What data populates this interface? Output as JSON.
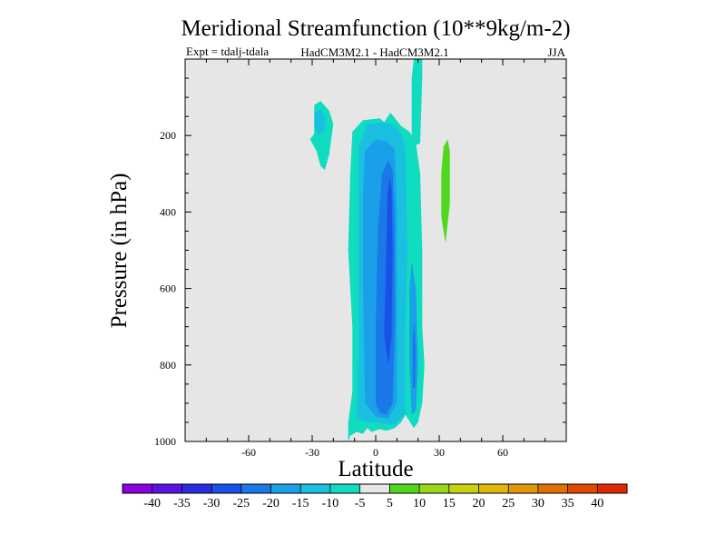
{
  "chart_data": {
    "type": "contour",
    "title": "Meridional Streamfunction (10**9kg/m-2)",
    "subtitle_left": "Expt = tdalj-tdala",
    "subtitle_center": "HadCM3M2.1 - HadCM3M2.1",
    "subtitle_right": "JJA",
    "xlabel": "Latitude",
    "ylabel": "Pressure (in hPa)",
    "xlim": [
      -90,
      90
    ],
    "ylim": [
      0,
      1000
    ],
    "y_inverted": true,
    "x_ticks": [
      -60,
      -30,
      0,
      30,
      60
    ],
    "x_tick_labels": [
      "-60",
      "-30",
      "0",
      "30",
      "60"
    ],
    "y_ticks": [
      200,
      400,
      600,
      800,
      1000
    ],
    "y_tick_labels": [
      "200",
      "400",
      "600",
      "800",
      "1000"
    ],
    "background": "#e6e6e6",
    "colorbar": {
      "levels": [
        "-40",
        "-35",
        "-30",
        "-25",
        "-20",
        "-15",
        "-10",
        "-5",
        "5",
        "10",
        "15",
        "20",
        "25",
        "30",
        "35",
        "40"
      ],
      "colors": [
        "#8a00e0",
        "#5a14e0",
        "#2a2ee0",
        "#1850e8",
        "#1a78e8",
        "#1aa0e8",
        "#1ac0e0",
        "#10dcc0",
        "#e6e6e6",
        "#50d820",
        "#98d818",
        "#c8d010",
        "#e0b808",
        "#e09808",
        "#e07000",
        "#e04a00",
        "#e02800"
      ]
    },
    "regions": [
      {
        "name": "main-cell-outer",
        "color": "#10dcc0",
        "points": [
          [
            -13,
            1000
          ],
          [
            -13,
            950
          ],
          [
            -11,
            870
          ],
          [
            -11,
            700
          ],
          [
            -13,
            500
          ],
          [
            -12,
            300
          ],
          [
            -11,
            190
          ],
          [
            -6,
            160
          ],
          [
            2,
            155
          ],
          [
            4,
            165
          ],
          [
            7,
            140
          ],
          [
            12,
            175
          ],
          [
            16,
            190
          ],
          [
            19,
            220
          ],
          [
            21,
            300
          ],
          [
            22,
            500
          ],
          [
            22,
            700
          ],
          [
            23,
            800
          ],
          [
            22,
            900
          ],
          [
            20,
            950
          ],
          [
            18,
            965
          ],
          [
            14,
            930
          ],
          [
            12,
            950
          ],
          [
            9,
            965
          ],
          [
            5,
            972
          ],
          [
            2,
            968
          ],
          [
            -2,
            975
          ],
          [
            -4,
            965
          ],
          [
            -6,
            980
          ],
          [
            -9,
            975
          ],
          [
            -12,
            985
          ]
        ]
      },
      {
        "name": "main-cell-neg10",
        "color": "#1ac0e0",
        "points": [
          [
            -9,
            940
          ],
          [
            -8,
            750
          ],
          [
            -8,
            500
          ],
          [
            -8,
            230
          ],
          [
            -4,
            170
          ],
          [
            3,
            165
          ],
          [
            7,
            170
          ],
          [
            11,
            185
          ],
          [
            14,
            230
          ],
          [
            15,
            500
          ],
          [
            14,
            700
          ],
          [
            14,
            930
          ],
          [
            8,
            958
          ],
          [
            2,
            952
          ],
          [
            -4,
            948
          ]
        ]
      },
      {
        "name": "main-cell-neg15",
        "color": "#1aa0e8",
        "points": [
          [
            -5,
            900
          ],
          [
            -6,
            600
          ],
          [
            -6,
            350
          ],
          [
            -5,
            240
          ],
          [
            0,
            210
          ],
          [
            5,
            215
          ],
          [
            9,
            235
          ],
          [
            10,
            400
          ],
          [
            10,
            700
          ],
          [
            10,
            900
          ],
          [
            6,
            940
          ],
          [
            0,
            935
          ]
        ]
      },
      {
        "name": "main-cell-neg20",
        "color": "#1a78e8",
        "points": [
          [
            0,
            900
          ],
          [
            0,
            700
          ],
          [
            1,
            450
          ],
          [
            3,
            300
          ],
          [
            6,
            265
          ],
          [
            8,
            290
          ],
          [
            9,
            450
          ],
          [
            9,
            700
          ],
          [
            8,
            900
          ],
          [
            5,
            930
          ],
          [
            2,
            925
          ]
        ]
      },
      {
        "name": "main-cell-neg25",
        "color": "#1850e8",
        "points": [
          [
            4,
            720
          ],
          [
            5,
            500
          ],
          [
            5.5,
            360
          ],
          [
            6.5,
            310
          ],
          [
            7.5,
            340
          ],
          [
            8,
            500
          ],
          [
            7.5,
            720
          ],
          [
            6,
            800
          ]
        ]
      },
      {
        "name": "mid-column-neg15",
        "color": "#1aa0e8",
        "points": [
          [
            17,
            930
          ],
          [
            16,
            800
          ],
          [
            16,
            600
          ],
          [
            17,
            530
          ],
          [
            19,
            600
          ],
          [
            20,
            800
          ],
          [
            19,
            920
          ]
        ]
      },
      {
        "name": "mid-column-neg20",
        "color": "#1a78e8",
        "points": [
          [
            17.5,
            860
          ],
          [
            17.5,
            730
          ],
          [
            18.3,
            690
          ],
          [
            19,
            760
          ],
          [
            18.6,
            860
          ]
        ]
      },
      {
        "name": "left-blob-outer",
        "color": "#10dcc0",
        "points": [
          [
            -31,
            210
          ],
          [
            -29,
            195
          ],
          [
            -29,
            120
          ],
          [
            -26,
            110
          ],
          [
            -22,
            135
          ],
          [
            -20,
            170
          ],
          [
            -21,
            210
          ],
          [
            -22,
            250
          ],
          [
            -24,
            290
          ],
          [
            -26,
            280
          ],
          [
            -28,
            240
          ],
          [
            -30,
            220
          ]
        ]
      },
      {
        "name": "left-blob-neg10",
        "color": "#1ac0e0",
        "points": [
          [
            -29,
            180
          ],
          [
            -29,
            140
          ],
          [
            -26,
            130
          ],
          [
            -24,
            150
          ],
          [
            -24,
            185
          ],
          [
            -27,
            200
          ]
        ]
      },
      {
        "name": "right-blob-positive",
        "color": "#50d820",
        "points": [
          [
            31,
            360
          ],
          [
            31,
            300
          ],
          [
            32,
            230
          ],
          [
            34,
            210
          ],
          [
            35,
            240
          ],
          [
            35,
            380
          ],
          [
            34,
            430
          ],
          [
            33,
            480
          ],
          [
            32,
            450
          ],
          [
            31,
            410
          ]
        ]
      },
      {
        "name": "upper-column",
        "color": "#10dcc0",
        "points": [
          [
            17,
            155
          ],
          [
            17,
            50
          ],
          [
            18,
            0
          ],
          [
            22,
            0
          ],
          [
            22,
            50
          ],
          [
            21,
            220
          ],
          [
            19,
            225
          ],
          [
            17,
            200
          ]
        ]
      }
    ]
  }
}
